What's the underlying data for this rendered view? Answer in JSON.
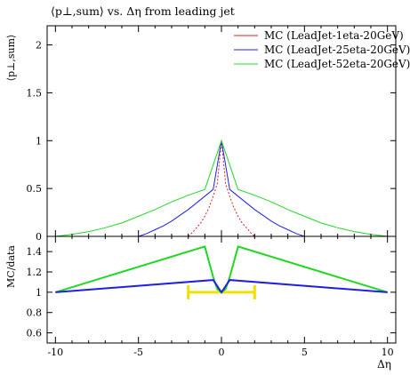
{
  "title": "⟨p⊥,sum⟩ vs. Δη from leading jet",
  "colors": {
    "series_1": "#d42020",
    "series_2": "#2020e0",
    "series_3": "#20d820",
    "ratio_band": "#f0e000",
    "axis": "#000000"
  },
  "chart_data": [
    {
      "type": "line",
      "panel": "main",
      "title": "⟨p⊥,sum⟩ vs. Δη from leading jet",
      "ylabel": "⟨p⊥,sum⟩",
      "xlabel": "",
      "xlim": [
        -10.5,
        10.5
      ],
      "ylim": [
        0,
        2.2
      ],
      "grid": false,
      "legend_position": "top-right",
      "yticks": [
        0,
        0.5,
        1,
        1.5,
        2
      ],
      "series": [
        {
          "name": "MC (LeadJet-1eta-20GeV)",
          "color_key": "series_1",
          "x": [
            -2.0,
            -1.75,
            -1.5,
            -1.25,
            -1.0,
            -0.75,
            -0.5,
            -0.25,
            0.0,
            0.25,
            0.5,
            0.75,
            1.0,
            1.25,
            1.5,
            1.75,
            2.0
          ],
          "y": [
            0.0,
            0.04,
            0.09,
            0.14,
            0.21,
            0.3,
            0.42,
            0.55,
            1.0,
            0.55,
            0.42,
            0.3,
            0.21,
            0.14,
            0.09,
            0.04,
            0.0
          ]
        },
        {
          "name": "MC (LeadJet-25eta-20GeV)",
          "color_key": "series_2",
          "x": [
            -5.0,
            -4.5,
            -4.0,
            -3.5,
            -3.0,
            -2.5,
            -2.0,
            -1.5,
            -1.0,
            -0.5,
            0.0,
            0.5,
            1.0,
            1.5,
            2.0,
            2.5,
            3.0,
            3.5,
            4.0,
            4.5,
            5.0
          ],
          "y": [
            0.0,
            0.03,
            0.07,
            0.11,
            0.16,
            0.22,
            0.28,
            0.35,
            0.42,
            0.49,
            1.0,
            0.49,
            0.42,
            0.35,
            0.28,
            0.22,
            0.16,
            0.11,
            0.07,
            0.03,
            0.0
          ]
        },
        {
          "name": "MC (LeadJet-52eta-20GeV)",
          "color_key": "series_3",
          "x": [
            -10.0,
            -9.0,
            -8.0,
            -7.0,
            -6.0,
            -5.0,
            -4.0,
            -3.0,
            -2.0,
            -1.0,
            0.0,
            1.0,
            2.0,
            3.0,
            4.0,
            5.0,
            6.0,
            7.0,
            8.0,
            9.0,
            10.0
          ],
          "y": [
            0.0,
            0.02,
            0.05,
            0.09,
            0.14,
            0.21,
            0.28,
            0.36,
            0.43,
            0.49,
            1.0,
            0.49,
            0.43,
            0.36,
            0.28,
            0.21,
            0.14,
            0.09,
            0.05,
            0.02,
            0.0
          ]
        }
      ]
    },
    {
      "type": "line",
      "panel": "ratio",
      "ylabel": "MC/data",
      "xlabel": "Δη",
      "xlim": [
        -10.5,
        10.5
      ],
      "ylim": [
        0.5,
        1.55
      ],
      "grid": false,
      "yticks": [
        0.6,
        0.8,
        1,
        1.2,
        1.4
      ],
      "xticks": [
        -10,
        -5,
        0,
        5,
        10
      ],
      "band": {
        "x": [
          -2.0,
          2.0
        ],
        "y": 1.0
      },
      "series": [
        {
          "color_key": "series_3",
          "x": [
            -10.0,
            -1.0,
            -0.75,
            -0.5,
            -0.25,
            0.0,
            0.25,
            0.5,
            0.75,
            1.0,
            10.0
          ],
          "y": [
            1.0,
            1.45,
            1.3,
            1.15,
            1.03,
            1.0,
            1.03,
            1.15,
            1.3,
            1.45,
            1.0
          ]
        },
        {
          "color_key": "series_2",
          "x": [
            -10.0,
            -0.5,
            0.0,
            0.5,
            10.0
          ],
          "y": [
            1.0,
            1.12,
            1.0,
            1.12,
            1.0
          ]
        }
      ]
    }
  ]
}
